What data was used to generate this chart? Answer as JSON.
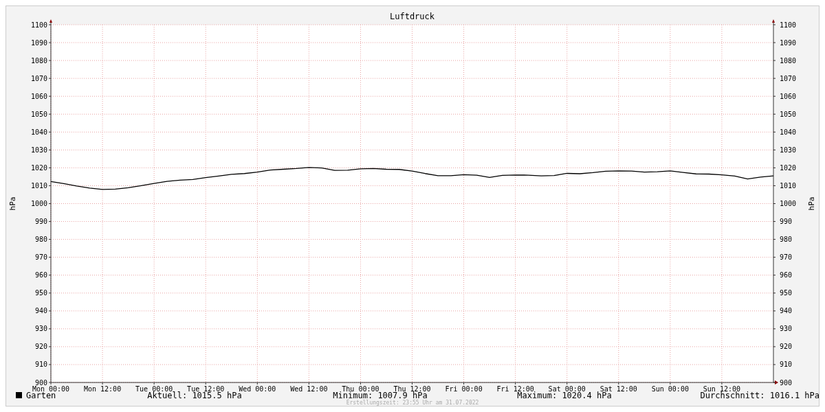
{
  "chart_data": {
    "type": "line",
    "title": "Luftdruck",
    "ylabel": "hPa",
    "y2label": "hPa",
    "x": [
      "2022-07-25T00:00",
      "2022-07-25T03:00",
      "2022-07-25T06:00",
      "2022-07-25T09:00",
      "2022-07-25T12:00",
      "2022-07-25T15:00",
      "2022-07-25T18:00",
      "2022-07-25T21:00",
      "2022-07-26T00:00",
      "2022-07-26T03:00",
      "2022-07-26T06:00",
      "2022-07-26T09:00",
      "2022-07-26T12:00",
      "2022-07-26T15:00",
      "2022-07-26T18:00",
      "2022-07-26T21:00",
      "2022-07-27T00:00",
      "2022-07-27T03:00",
      "2022-07-27T06:00",
      "2022-07-27T09:00",
      "2022-07-27T12:00",
      "2022-07-27T15:00",
      "2022-07-27T18:00",
      "2022-07-27T21:00",
      "2022-07-28T00:00",
      "2022-07-28T03:00",
      "2022-07-28T06:00",
      "2022-07-28T09:00",
      "2022-07-28T12:00",
      "2022-07-28T15:00",
      "2022-07-28T18:00",
      "2022-07-28T21:00",
      "2022-07-29T00:00",
      "2022-07-29T03:00",
      "2022-07-29T06:00",
      "2022-07-29T09:00",
      "2022-07-29T12:00",
      "2022-07-29T15:00",
      "2022-07-29T18:00",
      "2022-07-29T21:00",
      "2022-07-30T00:00",
      "2022-07-30T03:00",
      "2022-07-30T06:00",
      "2022-07-30T09:00",
      "2022-07-30T12:00",
      "2022-07-30T15:00",
      "2022-07-30T18:00",
      "2022-07-30T21:00",
      "2022-07-31T00:00",
      "2022-07-31T03:00",
      "2022-07-31T06:00",
      "2022-07-31T09:00",
      "2022-07-31T12:00",
      "2022-07-31T15:00",
      "2022-07-31T18:00",
      "2022-07-31T21:00",
      "2022-08-01T00:00"
    ],
    "series": [
      {
        "name": "Garten",
        "color": "#000000",
        "values": [
          1012.3,
          1011.2,
          1009.8,
          1008.7,
          1007.9,
          1008.1,
          1008.9,
          1010.0,
          1011.3,
          1012.4,
          1013.1,
          1013.5,
          1014.5,
          1015.4,
          1016.4,
          1016.8,
          1017.6,
          1018.8,
          1019.2,
          1019.6,
          1020.2,
          1019.9,
          1018.6,
          1018.7,
          1019.4,
          1019.6,
          1019.2,
          1019.1,
          1018.2,
          1016.8,
          1015.6,
          1015.6,
          1016.2,
          1015.9,
          1014.6,
          1015.8,
          1016.0,
          1015.9,
          1015.5,
          1015.7,
          1016.9,
          1016.7,
          1017.3,
          1018.1,
          1018.3,
          1018.2,
          1017.6,
          1017.8,
          1018.3,
          1017.4,
          1016.6,
          1016.5,
          1016.1,
          1015.4,
          1013.8,
          1014.8,
          1015.5
        ]
      }
    ],
    "xlim": [
      "2022-07-25T00:00",
      "2022-08-01T00:00"
    ],
    "xticks": [
      {
        "value": "2022-07-25T00:00",
        "label": "Mon 00:00"
      },
      {
        "value": "2022-07-25T12:00",
        "label": "Mon 12:00"
      },
      {
        "value": "2022-07-26T00:00",
        "label": "Tue 00:00"
      },
      {
        "value": "2022-07-26T12:00",
        "label": "Tue 12:00"
      },
      {
        "value": "2022-07-27T00:00",
        "label": "Wed 00:00"
      },
      {
        "value": "2022-07-27T12:00",
        "label": "Wed 12:00"
      },
      {
        "value": "2022-07-28T00:00",
        "label": "Thu 00:00"
      },
      {
        "value": "2022-07-28T12:00",
        "label": "Thu 12:00"
      },
      {
        "value": "2022-07-29T00:00",
        "label": "Fri 00:00"
      },
      {
        "value": "2022-07-29T12:00",
        "label": "Fri 12:00"
      },
      {
        "value": "2022-07-30T00:00",
        "label": "Sat 00:00"
      },
      {
        "value": "2022-07-30T12:00",
        "label": "Sat 12:00"
      },
      {
        "value": "2022-07-31T00:00",
        "label": "Sun 00:00"
      },
      {
        "value": "2022-07-31T12:00",
        "label": "Sun 12:00"
      }
    ],
    "ylim": [
      900,
      1100
    ],
    "yticks": [
      900,
      910,
      920,
      930,
      940,
      950,
      960,
      970,
      980,
      990,
      1000,
      1010,
      1020,
      1030,
      1040,
      1050,
      1060,
      1070,
      1080,
      1090,
      1100
    ],
    "y2lim": [
      900,
      1100
    ],
    "y2ticks": [
      900,
      910,
      920,
      930,
      940,
      950,
      960,
      970,
      980,
      990,
      1000,
      1010,
      1020,
      1030,
      1040,
      1050,
      1060,
      1070,
      1080,
      1090,
      1100
    ],
    "grid": true,
    "legend": "bottom left",
    "line_style": "solid",
    "marker": "none",
    "annotations": [
      "Aktuell: 1015.5 hPa",
      "Minimum: 1007.9 hPa",
      "Maximum: 1020.4 hPa",
      "Durchschnitt: 1016.1 hPa",
      "Erstellungszeit: 23:55 Uhr am 31.07.2022"
    ]
  }
}
